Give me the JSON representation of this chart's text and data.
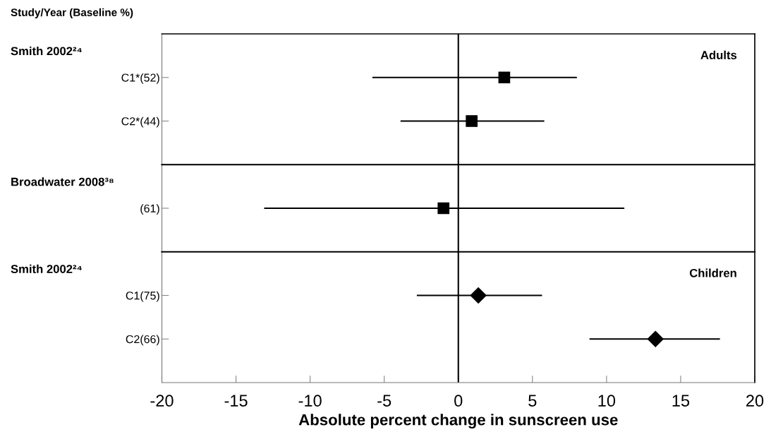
{
  "chart_data": [
    {
      "type": "scatter",
      "orientation": "horizontal",
      "title": "Smith 2002²⁴",
      "ylabel": "Study/Year (Baseline %)",
      "annotations": [
        "Adults"
      ],
      "categories": [
        "C1*(52)",
        "C2*(44)"
      ],
      "xlim": [
        -20,
        20
      ],
      "tick_labels": "y",
      "marker": "square",
      "series": [
        {
          "color": "#000000",
          "values": [
            3.1,
            0.9
          ],
          "errors": [
            [
              -5.8,
              8.0
            ],
            [
              -3.9,
              5.8
            ]
          ]
        }
      ],
      "ref_lines": [
        {
          "axis": "x",
          "value": 0,
          "color": "#000000"
        }
      ]
    },
    {
      "type": "scatter",
      "orientation": "horizontal",
      "title": "Broadwater 2008³⁸",
      "categories": [
        "(61)"
      ],
      "xlim": [
        -20,
        20
      ],
      "tick_labels": "y",
      "marker": "square",
      "series": [
        {
          "color": "#000000",
          "values": [
            -1.0
          ],
          "errors": [
            [
              -13.1,
              11.2
            ]
          ]
        }
      ],
      "ref_lines": [
        {
          "axis": "x",
          "value": 0,
          "color": "#000000"
        }
      ]
    },
    {
      "type": "scatter",
      "orientation": "horizontal",
      "title": "Smith 2002²⁴",
      "xlabel": "Absolute percent change in sunscreen use",
      "annotations": [
        "Children"
      ],
      "categories": [
        "C1(75)",
        "C2(66)"
      ],
      "xlim": [
        -20,
        20
      ],
      "xticks": [
        -20,
        -15,
        -10,
        -5,
        0,
        5,
        10,
        15,
        20
      ],
      "marker": "diamond",
      "series": [
        {
          "color": "#000000",
          "values": [
            1.35,
            13.3
          ],
          "errors": [
            [
              -2.8,
              5.65
            ],
            [
              8.85,
              17.65
            ]
          ]
        }
      ],
      "ref_lines": [
        {
          "axis": "x",
          "value": 0,
          "color": "#000000"
        }
      ]
    }
  ]
}
